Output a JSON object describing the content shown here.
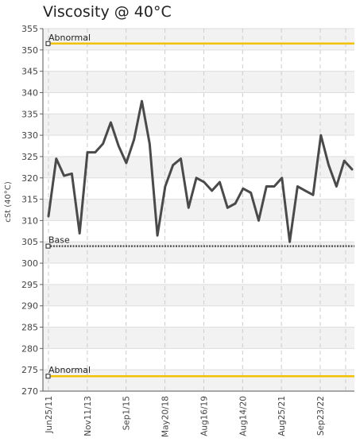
{
  "chart_data": {
    "type": "line",
    "title": "Viscosity @ 40°C",
    "ylabel": "cSt (40°C)",
    "xlabel": "",
    "ylim": [
      270,
      355
    ],
    "y_ticks": [
      270,
      275,
      280,
      285,
      290,
      295,
      300,
      305,
      310,
      315,
      320,
      325,
      330,
      335,
      340,
      345,
      350,
      355
    ],
    "x_tick_labels": [
      "Jun25/11",
      "Nov11/13",
      "Sep1/15",
      "May20/18",
      "Aug16/19",
      "Aug14/20",
      "Aug25/21",
      "Sep23/22"
    ],
    "grid": true,
    "series": [
      {
        "values": [
          311,
          324.5,
          320.5,
          321,
          307,
          326,
          326,
          328,
          333,
          327.5,
          323.5,
          329,
          338,
          328,
          306.5,
          318,
          323,
          324.5,
          313,
          320,
          319,
          317,
          319,
          313,
          314,
          317.5,
          316.5,
          310,
          318,
          318,
          320,
          305,
          318,
          317,
          316,
          330,
          323,
          318,
          324,
          322
        ],
        "color": "#4a4a4a"
      }
    ],
    "reference_lines": [
      {
        "label": "Abnormal",
        "value": 351.5,
        "color": "#f2c200",
        "style": "solid"
      },
      {
        "label": "Base",
        "value": 304,
        "color": "#555555",
        "style": "dotted"
      },
      {
        "label": "Abnormal",
        "value": 273.5,
        "color": "#f2c200",
        "style": "solid"
      }
    ]
  }
}
